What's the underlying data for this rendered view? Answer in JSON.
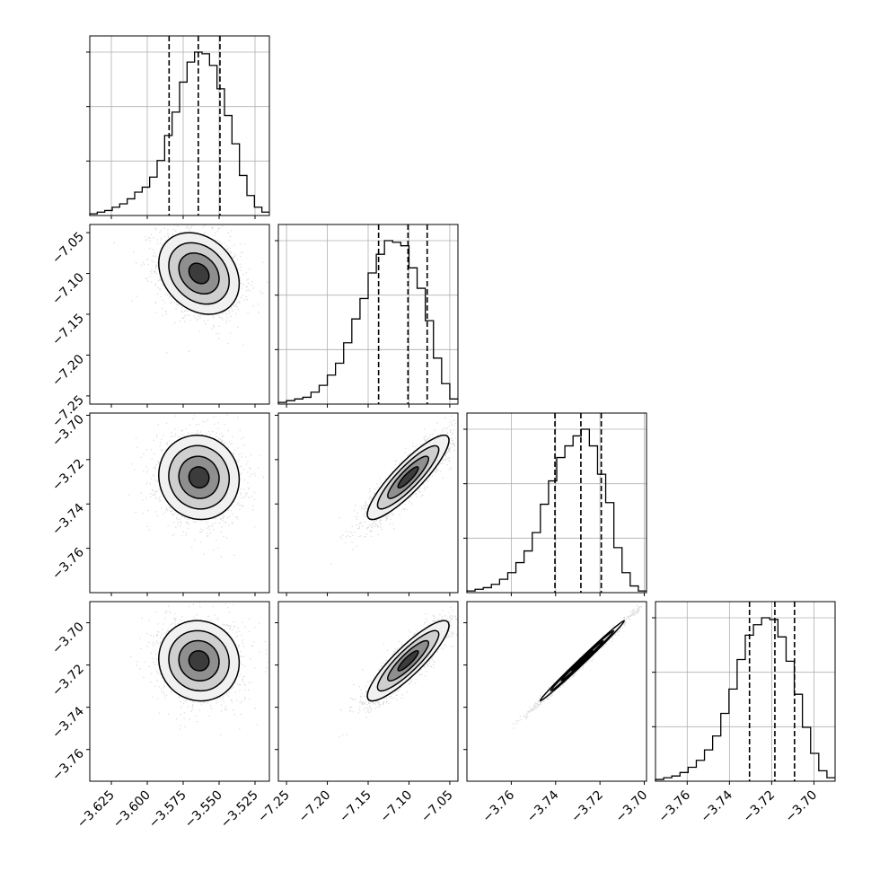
{
  "chart_data": {
    "type": "corner",
    "parameters": 4,
    "grid": true,
    "quantile_lines": "dashed",
    "axes": [
      {
        "lim": [
          -3.64,
          -3.515
        ],
        "ticks": [
          -3.625,
          -3.6,
          -3.575,
          -3.55,
          -3.525
        ],
        "tick_labels": [
          "−3.625",
          "−3.600",
          "−3.575",
          "−3.550",
          "−3.525"
        ]
      },
      {
        "lim": [
          -7.26,
          -7.04
        ],
        "ticks": [
          -7.25,
          -7.2,
          -7.15,
          -7.1,
          -7.05
        ],
        "tick_labels": [
          "−7.25",
          "−7.20",
          "−7.15",
          "−7.10",
          "−7.05"
        ]
      },
      {
        "lim": [
          -3.78,
          -3.699
        ],
        "ticks": [
          -3.76,
          -3.74,
          -3.72,
          -3.7
        ],
        "tick_labels": [
          "−3.76",
          "−3.74",
          "−3.72",
          "−3.70"
        ]
      },
      {
        "lim": [
          -3.775,
          -3.69
        ],
        "ticks": [
          -3.76,
          -3.74,
          -3.72,
          -3.7
        ],
        "tick_labels": [
          "−3.76",
          "−3.74",
          "−3.72",
          "−3.70"
        ]
      }
    ],
    "histograms": [
      {
        "quantiles": [
          -3.5848,
          -3.5645,
          -3.5494
        ],
        "counts": [
          1,
          2,
          3,
          5,
          7,
          10,
          14,
          17,
          23,
          33,
          48,
          62,
          80,
          92,
          98,
          97,
          90,
          76,
          60,
          43,
          24,
          12,
          5,
          2
        ]
      },
      {
        "quantiles": [
          -7.1372,
          -7.1012,
          -7.0777
        ],
        "counts": [
          1,
          2,
          3,
          4,
          7,
          11,
          17,
          24,
          36,
          50,
          62,
          77,
          88,
          96,
          95,
          93,
          80,
          68,
          49,
          27,
          12,
          3
        ]
      },
      {
        "quantiles": [
          -3.7403,
          -3.7286,
          -3.7194
        ],
        "counts": [
          1,
          2,
          3,
          5,
          8,
          12,
          18,
          25,
          36,
          53,
          67,
          81,
          88,
          94,
          98,
          88,
          71,
          54,
          27,
          12,
          4,
          1
        ]
      },
      {
        "quantiles": [
          -3.7305,
          -3.7185,
          -3.7092
        ],
        "counts": [
          1,
          2,
          3,
          5,
          8,
          12,
          18,
          26,
          39,
          53,
          70,
          84,
          90,
          94,
          93,
          83,
          69,
          50,
          31,
          16,
          6,
          2
        ]
      }
    ],
    "pairs": [
      {
        "x": 0,
        "y": 1,
        "center": [
          -3.564,
          -7.1
        ],
        "sigma": [
          0.014,
          0.025
        ],
        "rho": -0.25
      },
      {
        "x": 0,
        "y": 2,
        "center": [
          -3.564,
          -3.728
        ],
        "sigma": [
          0.014,
          0.0095
        ],
        "rho": -0.05
      },
      {
        "x": 1,
        "y": 2,
        "center": [
          -7.101,
          -3.728
        ],
        "sigma": [
          0.025,
          0.0095
        ],
        "rho": 0.88
      },
      {
        "x": 0,
        "y": 3,
        "center": [
          -3.564,
          -3.718
        ],
        "sigma": [
          0.014,
          0.0095
        ],
        "rho": -0.05
      },
      {
        "x": 1,
        "y": 3,
        "center": [
          -7.101,
          -3.718
        ],
        "sigma": [
          0.025,
          0.0095
        ],
        "rho": 0.88
      },
      {
        "x": 2,
        "y": 3,
        "center": [
          -3.728,
          -3.718
        ],
        "sigma": [
          0.0095,
          0.0095
        ],
        "rho": 0.995
      }
    ]
  }
}
